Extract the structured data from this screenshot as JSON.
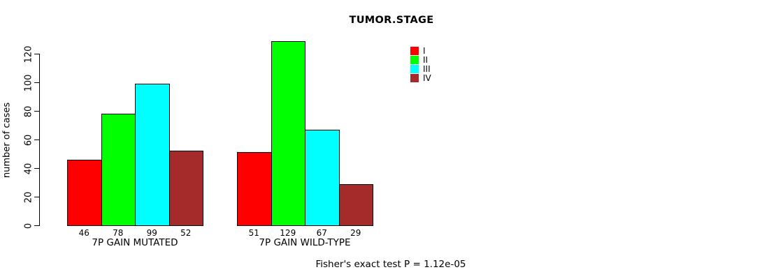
{
  "chart_data": {
    "type": "bar",
    "title": "TUMOR.STAGE",
    "ylabel": "number of cases",
    "ylim": [
      0,
      120
    ],
    "yticks": [
      0,
      20,
      40,
      60,
      80,
      100,
      120
    ],
    "grid": false,
    "legend_position": "top-right",
    "categories": [
      {
        "label": "I",
        "color": "#FF0000"
      },
      {
        "label": "II",
        "color": "#00FF00"
      },
      {
        "label": "III",
        "color": "#00FFFF"
      },
      {
        "label": "IV",
        "color": "#A52A2A"
      }
    ],
    "groups": [
      {
        "label": "7P GAIN MUTATED",
        "values": [
          46,
          78,
          99,
          52
        ]
      },
      {
        "label": "7P GAIN WILD-TYPE",
        "values": [
          51,
          129,
          67,
          29
        ]
      }
    ],
    "bar_border_color": "#000000",
    "annotation": "Fisher's exact test P = 1.12e-05"
  }
}
